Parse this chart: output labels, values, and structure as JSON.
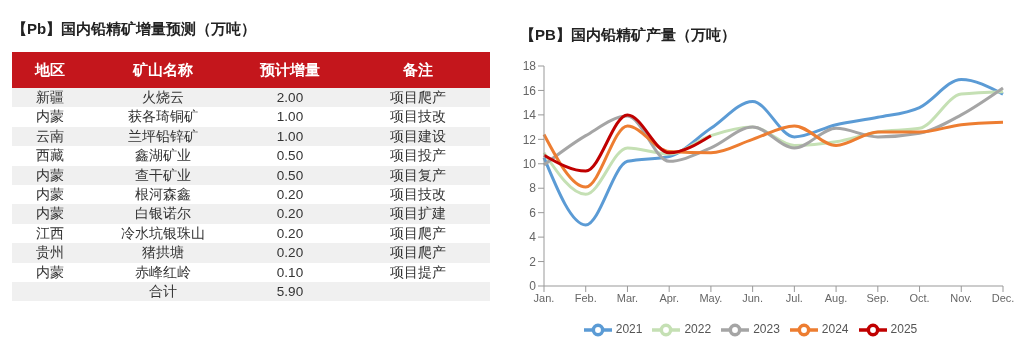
{
  "chart_data": [
    {
      "type": "other",
      "title": "【Pb】国内铅精矿增量预测（万吨）",
      "annotations": [
        "地区",
        "矿山名称",
        "预计增量",
        "备注",
        "新疆",
        "火烧云",
        "2.00",
        "项目爬产",
        "内蒙",
        "获各琦铜矿",
        "1.00",
        "项目技改",
        "云南",
        "兰坪铅锌矿",
        "1.00",
        "项目建设",
        "西藏",
        "鑫湖矿业",
        "0.50",
        "项目投产",
        "内蒙",
        "查干矿业",
        "0.50",
        "项目复产",
        "内蒙",
        "根河森鑫",
        "0.20",
        "项目技改",
        "内蒙",
        "白银诺尔",
        "0.20",
        "项目扩建",
        "江西",
        "冷水坑银珠山",
        "0.20",
        "项目爬产",
        "贵州",
        "猪拱塘",
        "0.20",
        "项目爬产",
        "内蒙",
        "赤峰红岭",
        "0.10",
        "项目提产",
        "合计",
        "5.90"
      ]
    },
    {
      "type": "line",
      "title": "【PB】国内铅精矿产量（万吨）",
      "categories": [
        "Jan.",
        "Feb.",
        "Mar.",
        "Apr.",
        "May.",
        "Jun.",
        "Jul.",
        "Aug.",
        "Sep.",
        "Oct.",
        "Nov.",
        "Dec."
      ],
      "ylim": [
        0,
        18
      ],
      "yticks": [
        0,
        2,
        4,
        6,
        8,
        10,
        12,
        14,
        16,
        18
      ],
      "grid": false,
      "legend": "bottom",
      "marker": "none",
      "series": [
        {
          "name": "2021",
          "color": "#5b9bd5",
          "values": [
            10.5,
            5.0,
            10.2,
            10.6,
            12.9,
            15.1,
            12.2,
            13.2,
            13.8,
            14.6,
            16.9,
            15.7
          ]
        },
        {
          "name": "2022",
          "color": "#c5e0b4",
          "values": [
            10.9,
            7.5,
            11.3,
            10.8,
            12.3,
            13.0,
            11.5,
            11.8,
            12.6,
            12.9,
            15.7,
            15.9
          ]
        },
        {
          "name": "2023",
          "color": "#a5a5a5",
          "values": [
            9.9,
            12.3,
            13.9,
            10.2,
            11.3,
            13.0,
            11.3,
            12.9,
            12.2,
            12.5,
            14.0,
            16.2
          ]
        },
        {
          "name": "2024",
          "color": "#ed7d31",
          "values": [
            12.4,
            8.1,
            13.1,
            11.0,
            10.9,
            12.0,
            13.1,
            11.5,
            12.6,
            12.6,
            13.2,
            13.4
          ]
        },
        {
          "name": "2025",
          "color": "#c00000",
          "values": [
            10.7,
            9.4,
            14.0,
            10.9,
            12.3,
            null,
            null,
            null,
            null,
            null,
            null,
            null
          ]
        }
      ]
    }
  ]
}
